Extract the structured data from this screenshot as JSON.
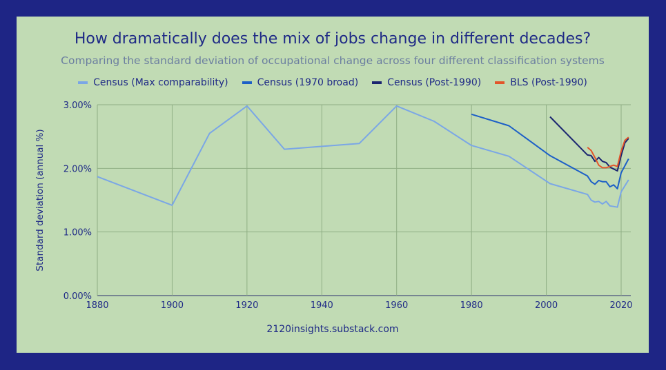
{
  "chart_data": {
    "type": "line",
    "title": "How dramatically does the mix of jobs change in different decades?",
    "subtitle": "Comparing the standard deviation of occupational change across four different classification systems",
    "ylabel": "Standard deviation (annual %)",
    "xlabel": "",
    "xlim": [
      1880,
      2022
    ],
    "ylim": [
      0,
      0.03
    ],
    "x_ticks": [
      "1880",
      "1900",
      "1920",
      "1940",
      "1960",
      "1980",
      "2000",
      "2020"
    ],
    "y_ticks": [
      "0.00%",
      "1.00%",
      "2.00%",
      "3.00%"
    ],
    "legend_position": "top",
    "grid": true,
    "series": [
      {
        "name": "Census (Max comparability)",
        "color": "#7aa6e6",
        "x": [
          1880,
          1900,
          1910,
          1920,
          1930,
          1950,
          1960,
          1970,
          1980,
          1990,
          2001,
          2011,
          2012,
          2013,
          2014,
          2015,
          2016,
          2017,
          2018,
          2019,
          2020,
          2022
        ],
        "y": [
          0.0187,
          0.0142,
          0.0255,
          0.0298,
          0.023,
          0.0239,
          0.0298,
          0.0274,
          0.0236,
          0.0219,
          0.0176,
          0.0159,
          0.015,
          0.0147,
          0.0148,
          0.0144,
          0.0148,
          0.0141,
          0.014,
          0.0139,
          0.0163,
          0.0182
        ]
      },
      {
        "name": "Census (1970 broad)",
        "color": "#1c5fc7",
        "x": [
          1980,
          1990,
          2001,
          2011,
          2012,
          2013,
          2014,
          2015,
          2016,
          2017,
          2018,
          2019,
          2020,
          2022
        ],
        "y": [
          0.0285,
          0.0267,
          0.022,
          0.0188,
          0.0179,
          0.0175,
          0.0181,
          0.0179,
          0.0179,
          0.0171,
          0.0174,
          0.0168,
          0.0193,
          0.0215
        ]
      },
      {
        "name": "Census (Post-1990)",
        "color": "#1a2470",
        "x": [
          2001,
          2011,
          2012,
          2013,
          2014,
          2015,
          2016,
          2017,
          2018,
          2019,
          2020,
          2021,
          2022
        ],
        "y": [
          0.0281,
          0.0221,
          0.022,
          0.0211,
          0.0217,
          0.0211,
          0.0209,
          0.0202,
          0.0199,
          0.0196,
          0.022,
          0.024,
          0.0247
        ]
      },
      {
        "name": "BLS (Post-1990)",
        "color": "#e2552a",
        "x": [
          2011,
          2012,
          2013,
          2014,
          2015,
          2016,
          2017,
          2018,
          2019,
          2020,
          2021,
          2022
        ],
        "y": [
          0.0233,
          0.0228,
          0.0217,
          0.0205,
          0.0201,
          0.0201,
          0.0203,
          0.0205,
          0.0203,
          0.0227,
          0.0244,
          0.0249
        ]
      }
    ]
  },
  "source_text": "2120insights.substack.com"
}
